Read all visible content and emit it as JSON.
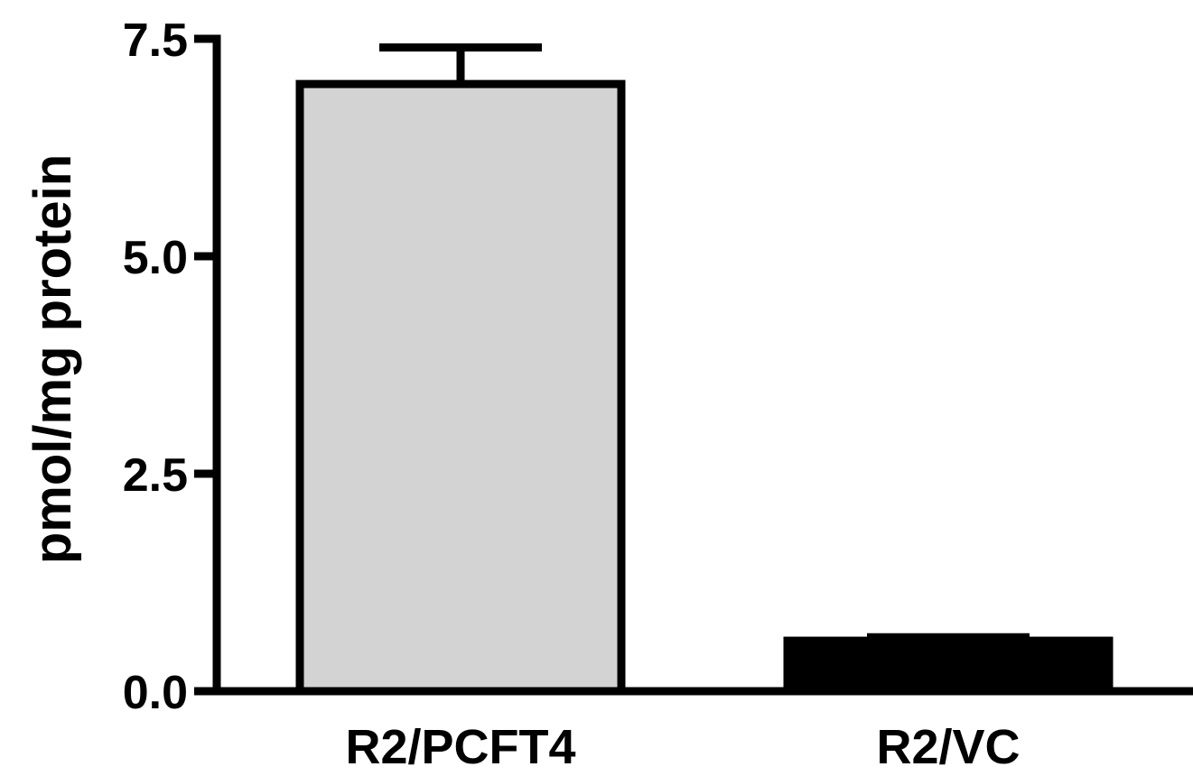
{
  "chart_data": {
    "type": "bar",
    "categories": [
      "R2/PCFT4",
      "R2/VC"
    ],
    "values": [
      6.98,
      0.58
    ],
    "errors": [
      0.42,
      0.04
    ],
    "ylabel": "pmol/mg protein",
    "xlabel": "",
    "title": "",
    "ylim": [
      0,
      7.5
    ],
    "yticks": [
      0.0,
      2.5,
      5.0,
      7.5
    ],
    "ytick_labels": [
      "0.0",
      "2.5",
      "5.0",
      "7.5"
    ],
    "bar_colors": [
      "#d3d3d3",
      "#000000"
    ],
    "edge_color": "#000000",
    "grid": false
  }
}
